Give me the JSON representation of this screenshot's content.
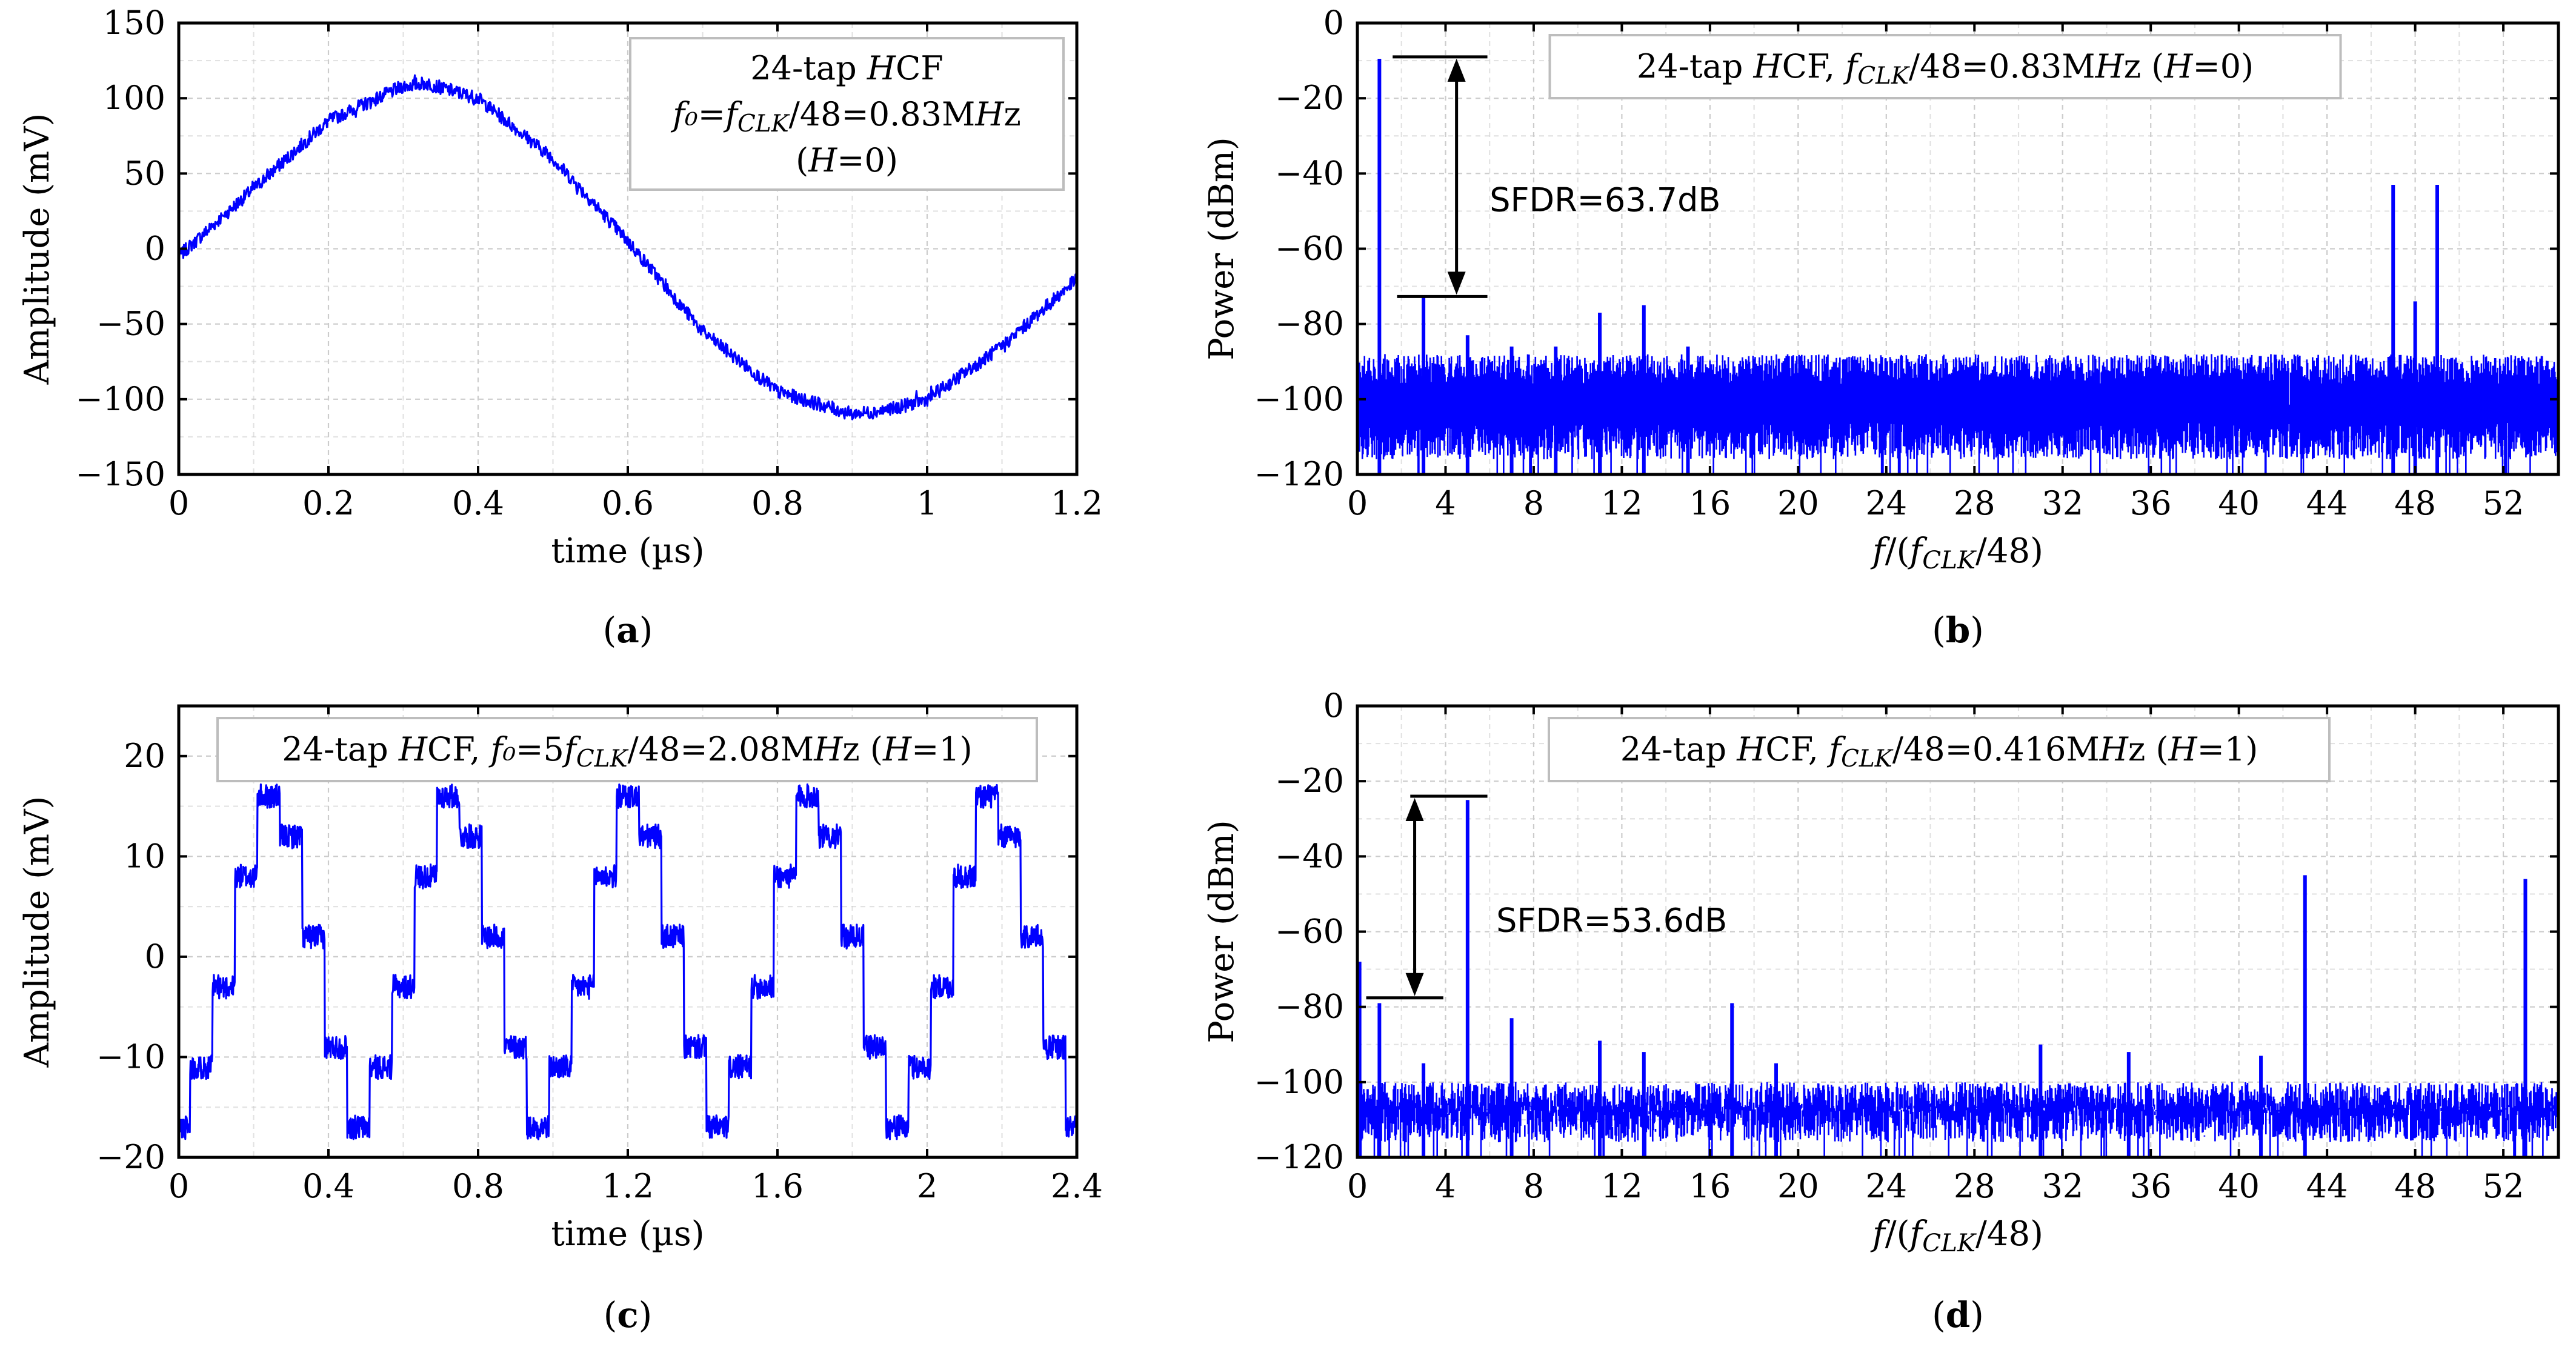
{
  "chart_data": [
    {
      "id": "a",
      "type": "line",
      "sub_label": "(a)",
      "xlabel": "time (µs)",
      "ylabel": "Amplitude (mV)",
      "xlim": [
        0,
        1.2
      ],
      "ylim": [
        -150,
        150
      ],
      "xticks": [
        0,
        0.2,
        0.4,
        0.6,
        0.8,
        1,
        1.2
      ],
      "xtick_labels": [
        "0",
        "0.2",
        "0.4",
        "0.6",
        "0.8",
        "1",
        "1.2"
      ],
      "yticks": [
        -150,
        -100,
        -50,
        0,
        50,
        100,
        150
      ],
      "ytick_labels": [
        "−150",
        "−100",
        "−50",
        "0",
        "50",
        "100",
        "150"
      ],
      "grid": true,
      "legend": [
        "24-tap HCF",
        "f₀=f_CLK/48=0.83MHz",
        "(H=0)"
      ],
      "legend_placement": "top-right",
      "series": [
        {
          "color": "#0000ff",
          "x": [
            0,
            0.1,
            0.2,
            0.3,
            0.33,
            0.4,
            0.5,
            0.6,
            0.7,
            0.8,
            0.9,
            0.95,
            1.0,
            1.1,
            1.2
          ],
          "y": [
            -5,
            40,
            85,
            108,
            110,
            100,
            60,
            5,
            -55,
            -95,
            -110,
            -107,
            -100,
            -65,
            -20
          ]
        }
      ]
    },
    {
      "id": "b",
      "type": "bar",
      "sub_label": "(b)",
      "xlabel": "f/(f_CLK/48)",
      "ylabel": "Power (dBm)",
      "xlim": [
        0,
        54.5
      ],
      "ylim": [
        -120,
        0
      ],
      "xticks": [
        0,
        4,
        8,
        12,
        16,
        20,
        24,
        28,
        32,
        36,
        40,
        44,
        48,
        52
      ],
      "xtick_labels": [
        "0",
        "4",
        "8",
        "12",
        "16",
        "20",
        "24",
        "28",
        "32",
        "36",
        "40",
        "44",
        "48",
        "52"
      ],
      "yticks": [
        -120,
        -100,
        -80,
        -60,
        -40,
        -20,
        0
      ],
      "ytick_labels": [
        "−120",
        "−100",
        "−80",
        "−60",
        "−40",
        "−20",
        "0"
      ],
      "grid": true,
      "legend": [
        "24-tap HCF, f_CLK/48=0.83MHz (H=0)"
      ],
      "legend_placement": "top-center",
      "noise_floor": -92,
      "annotation": {
        "text": "SFDR=63.7dB",
        "top": -9,
        "bottom": -72.7
      },
      "series": [
        {
          "color": "#0000ff",
          "x": [
            1,
            3,
            5,
            7,
            9,
            11,
            13,
            15,
            47,
            48,
            49
          ],
          "y": [
            -9.5,
            -73,
            -83,
            -86,
            -86,
            -77,
            -75,
            -86,
            -43,
            -74,
            -43
          ]
        }
      ]
    },
    {
      "id": "c",
      "type": "line",
      "sub_label": "(c)",
      "xlabel": "time (µs)",
      "ylabel": "Amplitude (mV)",
      "xlim": [
        0,
        2.4
      ],
      "ylim": [
        -20,
        25
      ],
      "xticks": [
        0,
        0.4,
        0.8,
        1.2,
        1.6,
        2,
        2.4
      ],
      "xtick_labels": [
        "0",
        "0.4",
        "0.8",
        "1.2",
        "1.6",
        "2",
        "2.4"
      ],
      "yticks": [
        -20,
        -10,
        0,
        10,
        20
      ],
      "ytick_labels": [
        "−20",
        "−10",
        "0",
        "10",
        "20"
      ],
      "grid": true,
      "legend": [
        "24-tap HCF, f₀=5f_CLK/48=2.08MHz (H=1)"
      ],
      "legend_placement": "top-center",
      "period_us": 0.48,
      "levels_mV": [
        -17,
        -11,
        -3,
        8,
        16,
        12,
        2,
        -9
      ],
      "series": [
        {
          "color": "#0000ff"
        }
      ]
    },
    {
      "id": "d",
      "type": "bar",
      "sub_label": "(d)",
      "xlabel": "f/(f_CLK/48)",
      "ylabel": "Power (dBm)",
      "xlim": [
        0,
        54.5
      ],
      "ylim": [
        -120,
        0
      ],
      "xticks": [
        0,
        4,
        8,
        12,
        16,
        20,
        24,
        28,
        32,
        36,
        40,
        44,
        48,
        52
      ],
      "xtick_labels": [
        "0",
        "4",
        "8",
        "12",
        "16",
        "20",
        "24",
        "28",
        "32",
        "36",
        "40",
        "44",
        "48",
        "52"
      ],
      "yticks": [
        -120,
        -100,
        -80,
        -60,
        -40,
        -20,
        0
      ],
      "ytick_labels": [
        "−120",
        "−100",
        "−80",
        "−60",
        "−40",
        "−20",
        "0"
      ],
      "grid": true,
      "legend": [
        "24-tap HCF, f_CLK/48=0.416MHz (H=1)"
      ],
      "legend_placement": "top-center",
      "noise_floor": -104,
      "annotation": {
        "text": "SFDR=53.6dB",
        "top": -24,
        "bottom": -77.6
      },
      "series": [
        {
          "color": "#0000ff",
          "x": [
            0.1,
            1,
            3,
            5,
            7,
            11,
            13,
            17,
            19,
            31,
            35,
            41,
            43,
            53
          ],
          "y": [
            -68,
            -79,
            -95,
            -25,
            -83,
            -89,
            -92,
            -79,
            -95,
            -90,
            -92,
            -93,
            -45,
            -46
          ]
        }
      ]
    }
  ]
}
